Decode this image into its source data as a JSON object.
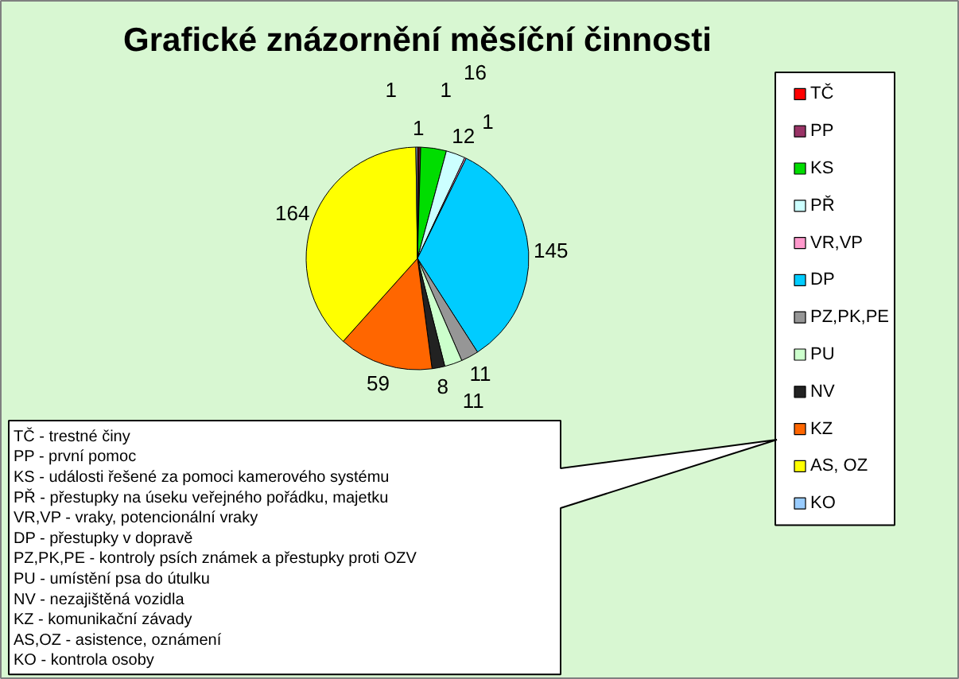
{
  "chart_data": {
    "type": "pie",
    "title": "Grafické znázornění měsíční činnosti",
    "categories": [
      "TČ",
      "PP",
      "KS",
      "PŘ",
      "VR,VP",
      "DP",
      "PZ,PK,PE",
      "PU",
      "NV",
      "KZ",
      "AS, OZ",
      "KO"
    ],
    "values": [
      1,
      1,
      16,
      12,
      1,
      145,
      11,
      11,
      8,
      59,
      164,
      1
    ],
    "colors": [
      "#ff0000",
      "#993366",
      "#00dd00",
      "#ccffff",
      "#ff99cc",
      "#00ccff",
      "#969696",
      "#ccffcc",
      "#222222",
      "#ff6600",
      "#ffff00",
      "#99ccff"
    ],
    "data_labels": true,
    "legend": "right",
    "annotations": [
      "TČ - trestné činy",
      "PP - první pomoc",
      "KS - události řešené za pomoci kamerového systému",
      "PŘ - přestupky na úseku veřejného pořádku, majetku",
      "VR,VP - vraky, potencionální vraky",
      "DP - přestupky v dopravě",
      "PZ,PK,PE - kontroly psích známek a přestupky proti OZV",
      "PU - umístění psa do útulku",
      "NV - nezajištěná vozidla",
      "KZ - komunikační závady",
      "AS,OZ - asistence, oznámení",
      "KO - kontrola osoby"
    ]
  }
}
